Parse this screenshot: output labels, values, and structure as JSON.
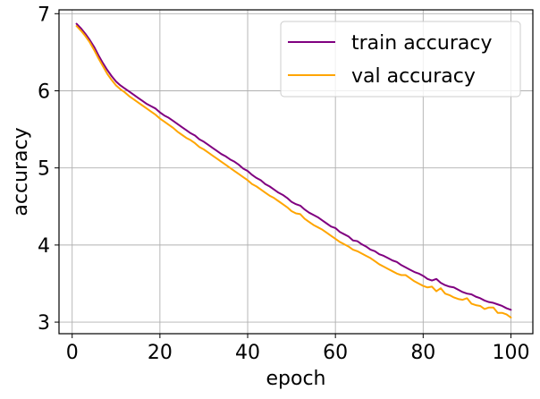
{
  "chart_data": {
    "type": "line",
    "title": "",
    "xlabel": "epoch",
    "ylabel": "accuracy",
    "xlim": [
      -3,
      105
    ],
    "ylim": [
      2.85,
      7.05
    ],
    "xticks": [
      0,
      20,
      40,
      60,
      80,
      100
    ],
    "yticks": [
      3,
      4,
      5,
      6,
      7
    ],
    "xtick_labels": [
      "0",
      "20",
      "40",
      "60",
      "80",
      "100"
    ],
    "ytick_labels": [
      "3",
      "4",
      "5",
      "6",
      "7"
    ],
    "grid": true,
    "legend_position": "top-right",
    "x": [
      1,
      2,
      3,
      4,
      5,
      6,
      7,
      8,
      9,
      10,
      11,
      12,
      13,
      14,
      15,
      16,
      17,
      18,
      19,
      20,
      21,
      22,
      23,
      24,
      25,
      26,
      27,
      28,
      29,
      30,
      31,
      32,
      33,
      34,
      35,
      36,
      37,
      38,
      39,
      40,
      41,
      42,
      43,
      44,
      45,
      46,
      47,
      48,
      49,
      50,
      51,
      52,
      53,
      54,
      55,
      56,
      57,
      58,
      59,
      60,
      61,
      62,
      63,
      64,
      65,
      66,
      67,
      68,
      69,
      70,
      71,
      72,
      73,
      74,
      75,
      76,
      77,
      78,
      79,
      80,
      81,
      82,
      83,
      84,
      85,
      86,
      87,
      88,
      89,
      90,
      91,
      92,
      93,
      94,
      95,
      96,
      97,
      98,
      99,
      100
    ],
    "series": [
      {
        "name": "train accuracy",
        "color": "#800080",
        "values": [
          6.87,
          6.81,
          6.74,
          6.66,
          6.57,
          6.46,
          6.36,
          6.27,
          6.19,
          6.12,
          6.07,
          6.03,
          5.99,
          5.95,
          5.91,
          5.87,
          5.83,
          5.8,
          5.77,
          5.72,
          5.68,
          5.65,
          5.61,
          5.57,
          5.53,
          5.49,
          5.45,
          5.42,
          5.37,
          5.34,
          5.3,
          5.26,
          5.22,
          5.18,
          5.15,
          5.11,
          5.08,
          5.04,
          4.99,
          4.96,
          4.91,
          4.87,
          4.84,
          4.79,
          4.76,
          4.72,
          4.68,
          4.65,
          4.61,
          4.56,
          4.53,
          4.51,
          4.46,
          4.42,
          4.39,
          4.36,
          4.32,
          4.28,
          4.24,
          4.22,
          4.17,
          4.14,
          4.11,
          4.06,
          4.05,
          4.01,
          3.98,
          3.94,
          3.92,
          3.88,
          3.86,
          3.83,
          3.8,
          3.78,
          3.74,
          3.71,
          3.68,
          3.65,
          3.63,
          3.6,
          3.56,
          3.54,
          3.56,
          3.51,
          3.48,
          3.46,
          3.45,
          3.42,
          3.39,
          3.37,
          3.36,
          3.33,
          3.31,
          3.28,
          3.26,
          3.25,
          3.23,
          3.21,
          3.18,
          3.16
        ]
      },
      {
        "name": "val accuracy",
        "color": "#FFA500",
        "values": [
          6.84,
          6.78,
          6.71,
          6.63,
          6.53,
          6.42,
          6.32,
          6.22,
          6.14,
          6.07,
          6.02,
          5.98,
          5.93,
          5.89,
          5.85,
          5.81,
          5.77,
          5.73,
          5.69,
          5.64,
          5.6,
          5.56,
          5.52,
          5.47,
          5.43,
          5.39,
          5.36,
          5.32,
          5.27,
          5.24,
          5.2,
          5.16,
          5.12,
          5.08,
          5.04,
          5.0,
          4.96,
          4.92,
          4.88,
          4.84,
          4.79,
          4.76,
          4.72,
          4.68,
          4.64,
          4.61,
          4.57,
          4.53,
          4.49,
          4.44,
          4.41,
          4.4,
          4.34,
          4.3,
          4.26,
          4.23,
          4.2,
          4.16,
          4.12,
          4.08,
          4.04,
          4.01,
          3.98,
          3.94,
          3.92,
          3.89,
          3.86,
          3.83,
          3.79,
          3.75,
          3.72,
          3.69,
          3.66,
          3.63,
          3.61,
          3.61,
          3.57,
          3.53,
          3.5,
          3.47,
          3.45,
          3.46,
          3.4,
          3.44,
          3.37,
          3.35,
          3.32,
          3.3,
          3.29,
          3.31,
          3.24,
          3.22,
          3.21,
          3.17,
          3.19,
          3.19,
          3.12,
          3.12,
          3.1,
          3.06
        ]
      }
    ]
  }
}
